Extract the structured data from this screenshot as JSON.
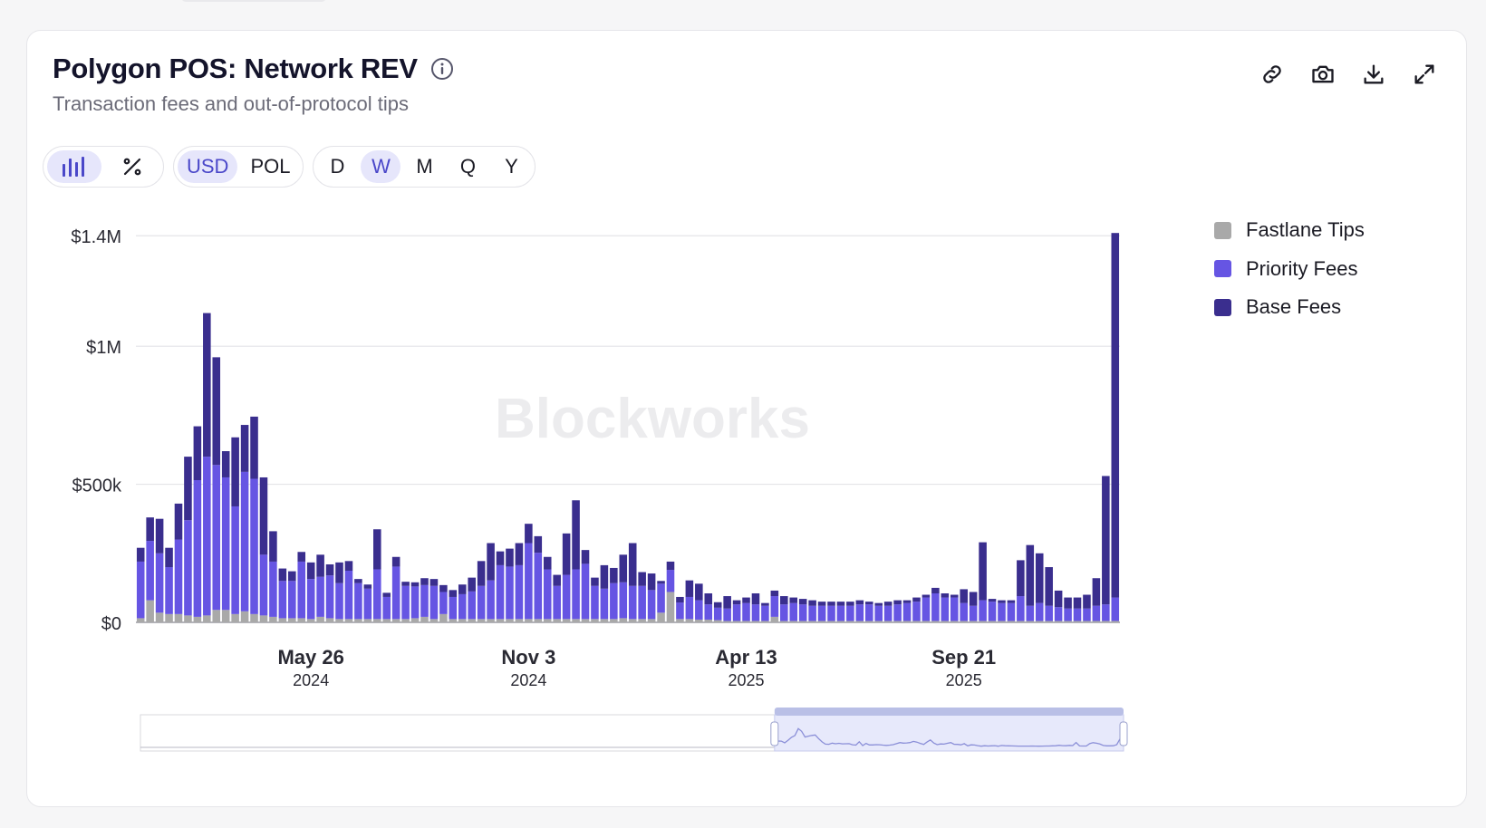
{
  "header": {
    "title": "Polygon POS: Network REV",
    "subtitle": "Transaction fees and out-of-protocol tips",
    "info_icon": "info-icon"
  },
  "actions": [
    {
      "name": "link-icon"
    },
    {
      "name": "camera-icon"
    },
    {
      "name": "download-icon"
    },
    {
      "name": "expand-icon"
    }
  ],
  "controls": {
    "view": {
      "selected": "bar-chart-icon",
      "options": [
        "bar-chart-icon",
        "percent-icon"
      ]
    },
    "currency": {
      "options": [
        "USD",
        "POL"
      ],
      "selected": "USD"
    },
    "interval": {
      "options": [
        "D",
        "W",
        "M",
        "Q",
        "Y"
      ],
      "selected": "W"
    }
  },
  "watermark": "Blockworks",
  "colors": {
    "fastlane": "#a9a9a9",
    "priority": "#6655e3",
    "base": "#3a2e8e",
    "active_pill_bg": "#e6e6fb",
    "active_pill_text": "#4a47c9"
  },
  "chart_data": {
    "type": "bar",
    "stacked": true,
    "grid": true,
    "legend_position": "right",
    "yticks": [
      "$0",
      "$500k",
      "$1M",
      "$1.4M"
    ],
    "ylim": [
      0,
      1450000
    ],
    "xticks": [
      {
        "label": "May 26",
        "year": "2024",
        "index": 18
      },
      {
        "label": "Nov 3",
        "year": "2024",
        "index": 41
      },
      {
        "label": "Apr 13",
        "year": "2025",
        "index": 64
      },
      {
        "label": "Sep 21",
        "year": "2025",
        "index": 87
      }
    ],
    "series": [
      {
        "name": "Fastlane Tips",
        "color": "#a9a9a9",
        "values": [
          15000,
          80000,
          35000,
          30000,
          30000,
          25000,
          20000,
          25000,
          45000,
          45000,
          30000,
          40000,
          30000,
          25000,
          20000,
          15000,
          15000,
          15000,
          12000,
          20000,
          15000,
          12000,
          12000,
          12000,
          12000,
          12000,
          12000,
          12000,
          12000,
          15000,
          20000,
          12000,
          30000,
          12000,
          12000,
          12000,
          12000,
          12000,
          12000,
          12000,
          12000,
          12000,
          12000,
          12000,
          12000,
          12000,
          12000,
          12000,
          12000,
          12000,
          12000,
          15000,
          12000,
          12000,
          12000,
          35000,
          110000,
          12000,
          12000,
          10000,
          10000,
          8000,
          5000,
          5000,
          5000,
          5000,
          5000,
          20000,
          5000,
          5000,
          5000,
          5000,
          5000,
          5000,
          5000,
          5000,
          5000,
          5000,
          5000,
          5000,
          5000,
          5000,
          5000,
          5000,
          5000,
          5000,
          5000,
          5000,
          5000,
          5000,
          5000,
          5000,
          5000,
          5000,
          5000,
          5000,
          5000,
          5000,
          5000,
          5000,
          5000,
          5000,
          5000,
          5000
        ]
      },
      {
        "name": "Priority Fees",
        "color": "#6655e3",
        "values": [
          205000,
          215000,
          215000,
          170000,
          270000,
          345000,
          495000,
          575000,
          525000,
          480000,
          390000,
          505000,
          490000,
          220000,
          200000,
          135000,
          135000,
          205000,
          145000,
          145000,
          155000,
          130000,
          175000,
          130000,
          110000,
          180000,
          80000,
          190000,
          120000,
          115000,
          115000,
          120000,
          80000,
          80000,
          90000,
          100000,
          120000,
          140000,
          195000,
          190000,
          195000,
          275000,
          240000,
          180000,
          120000,
          160000,
          180000,
          200000,
          120000,
          110000,
          130000,
          130000,
          120000,
          120000,
          105000,
          105000,
          80000,
          60000,
          80000,
          70000,
          55000,
          45000,
          45000,
          60000,
          65000,
          60000,
          55000,
          75000,
          60000,
          65000,
          60000,
          55000,
          55000,
          55000,
          55000,
          55000,
          60000,
          60000,
          55000,
          55000,
          60000,
          65000,
          70000,
          85000,
          100000,
          85000,
          85000,
          65000,
          55000,
          75000,
          70000,
          65000,
          65000,
          90000,
          55000,
          65000,
          55000,
          50000,
          45000,
          45000,
          45000,
          55000,
          60000,
          85000
        ]
      },
      {
        "name": "Base Fees",
        "color": "#3a2e8e",
        "values": [
          50000,
          85000,
          125000,
          70000,
          130000,
          230000,
          195000,
          520000,
          390000,
          95000,
          250000,
          170000,
          225000,
          280000,
          110000,
          45000,
          35000,
          35000,
          60000,
          80000,
          40000,
          75000,
          35000,
          15000,
          15000,
          145000,
          15000,
          35000,
          15000,
          15000,
          25000,
          25000,
          25000,
          25000,
          35000,
          50000,
          90000,
          135000,
          50000,
          65000,
          80000,
          70000,
          60000,
          45000,
          40000,
          150000,
          250000,
          50000,
          30000,
          85000,
          55000,
          100000,
          155000,
          50000,
          60000,
          10000,
          30000,
          20000,
          60000,
          60000,
          40000,
          20000,
          45000,
          15000,
          20000,
          40000,
          10000,
          20000,
          30000,
          20000,
          20000,
          20000,
          15000,
          15000,
          15000,
          15000,
          15000,
          10000,
          10000,
          15000,
          15000,
          10000,
          15000,
          10000,
          20000,
          15000,
          10000,
          50000,
          50000,
          210000,
          10000,
          10000,
          10000,
          130000,
          220000,
          180000,
          140000,
          60000,
          40000,
          40000,
          50000,
          100000,
          465000,
          1320000
        ]
      }
    ],
    "navigator": {
      "has_range_selector": true,
      "selected_fraction": [
        0.645,
        1.0
      ]
    }
  }
}
